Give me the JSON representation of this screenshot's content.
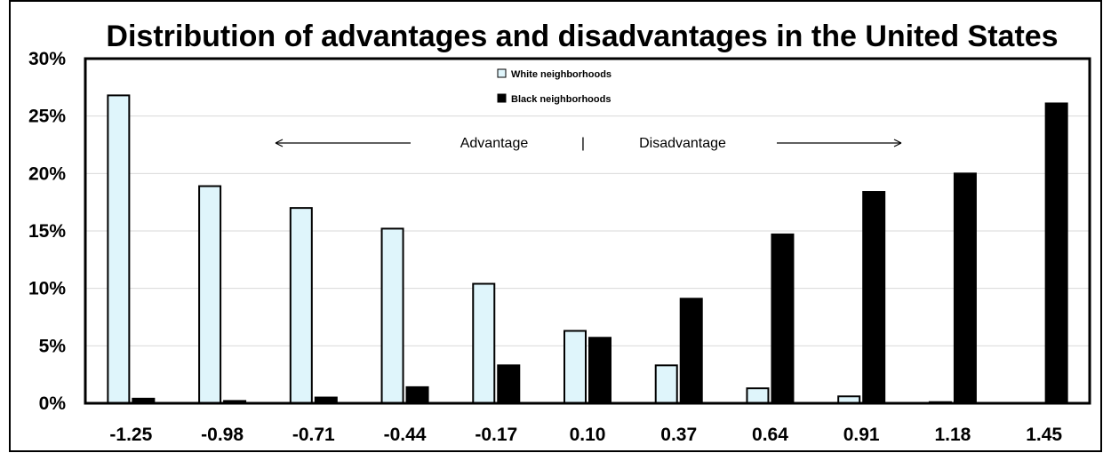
{
  "chart_data": {
    "type": "bar",
    "title": "Distribution of advantages and disadvantages in the United States",
    "xlabel": "",
    "ylabel": "",
    "categories": [
      "-1.25",
      "-0.98",
      "-0.71",
      "-0.44",
      "-0.17",
      "0.10",
      "0.37",
      "0.64",
      "0.91",
      "1.18",
      "1.45"
    ],
    "series": [
      {
        "name": "White neighborhoods",
        "color": "#dff5fb",
        "values": [
          26.8,
          18.9,
          17.0,
          15.2,
          10.4,
          6.3,
          3.3,
          1.3,
          0.6,
          0.1,
          0.0
        ]
      },
      {
        "name": "Black neighborhoods",
        "color": "#000000",
        "values": [
          0.4,
          0.2,
          0.5,
          1.4,
          3.3,
          5.7,
          9.1,
          14.7,
          18.4,
          20.0,
          26.1
        ]
      }
    ],
    "ylim": [
      0,
      30
    ],
    "yticks": [
      "0%",
      "5%",
      "10%",
      "15%",
      "20%",
      "25%",
      "30%"
    ],
    "grid": true,
    "legend_position": "top-center",
    "annotations": {
      "left": "Advantage",
      "divider": "|",
      "right": "Disadvantage"
    }
  }
}
